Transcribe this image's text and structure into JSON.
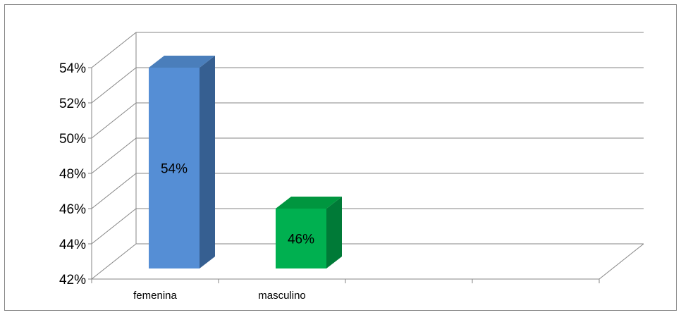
{
  "chart_data": {
    "type": "bar",
    "categories": [
      "femenina",
      "masculino"
    ],
    "values": [
      54,
      46
    ],
    "data_labels": [
      "54%",
      "46%"
    ],
    "ylim": [
      42,
      54
    ],
    "yticks": [
      42,
      44,
      46,
      48,
      50,
      52,
      54
    ],
    "ytick_labels": [
      "42%",
      "44%",
      "46%",
      "48%",
      "50%",
      "52%",
      "54%"
    ],
    "category_slots": 4,
    "title": "",
    "xlabel": "",
    "ylabel": "",
    "grid": true,
    "legend": "none",
    "three_d": true,
    "series": [
      {
        "values": [
          54,
          46
        ],
        "colors": [
          {
            "front": "#558ED5",
            "side": "#365F91",
            "top": "#4A7EBB"
          },
          {
            "front": "#00B050",
            "side": "#007A37",
            "top": "#00963F"
          }
        ]
      }
    ],
    "colors": {
      "gridline": "#868686",
      "frame": "#868686"
    }
  }
}
